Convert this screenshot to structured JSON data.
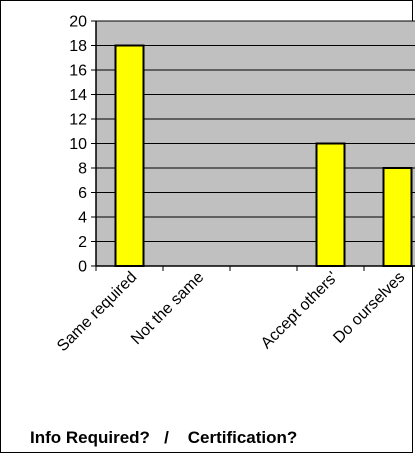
{
  "chart_data": {
    "type": "bar",
    "categories": [
      "Same required",
      "Not the same",
      "",
      "Accept others'",
      "Do ourselves"
    ],
    "values": [
      18,
      0,
      0,
      10,
      8
    ],
    "title": "",
    "xlabel": "Info Required?   /    Certification?",
    "ylabel": "",
    "ylim": [
      0,
      20
    ],
    "yticks": [
      0,
      2,
      4,
      6,
      8,
      10,
      12,
      14,
      16,
      18,
      20
    ],
    "grid": true,
    "legend": "none",
    "colors": {
      "plot_background": "#c0c0c0",
      "bar_fill": "#ffff00",
      "bar_stroke": "#000000",
      "gridline": "#000000"
    }
  }
}
